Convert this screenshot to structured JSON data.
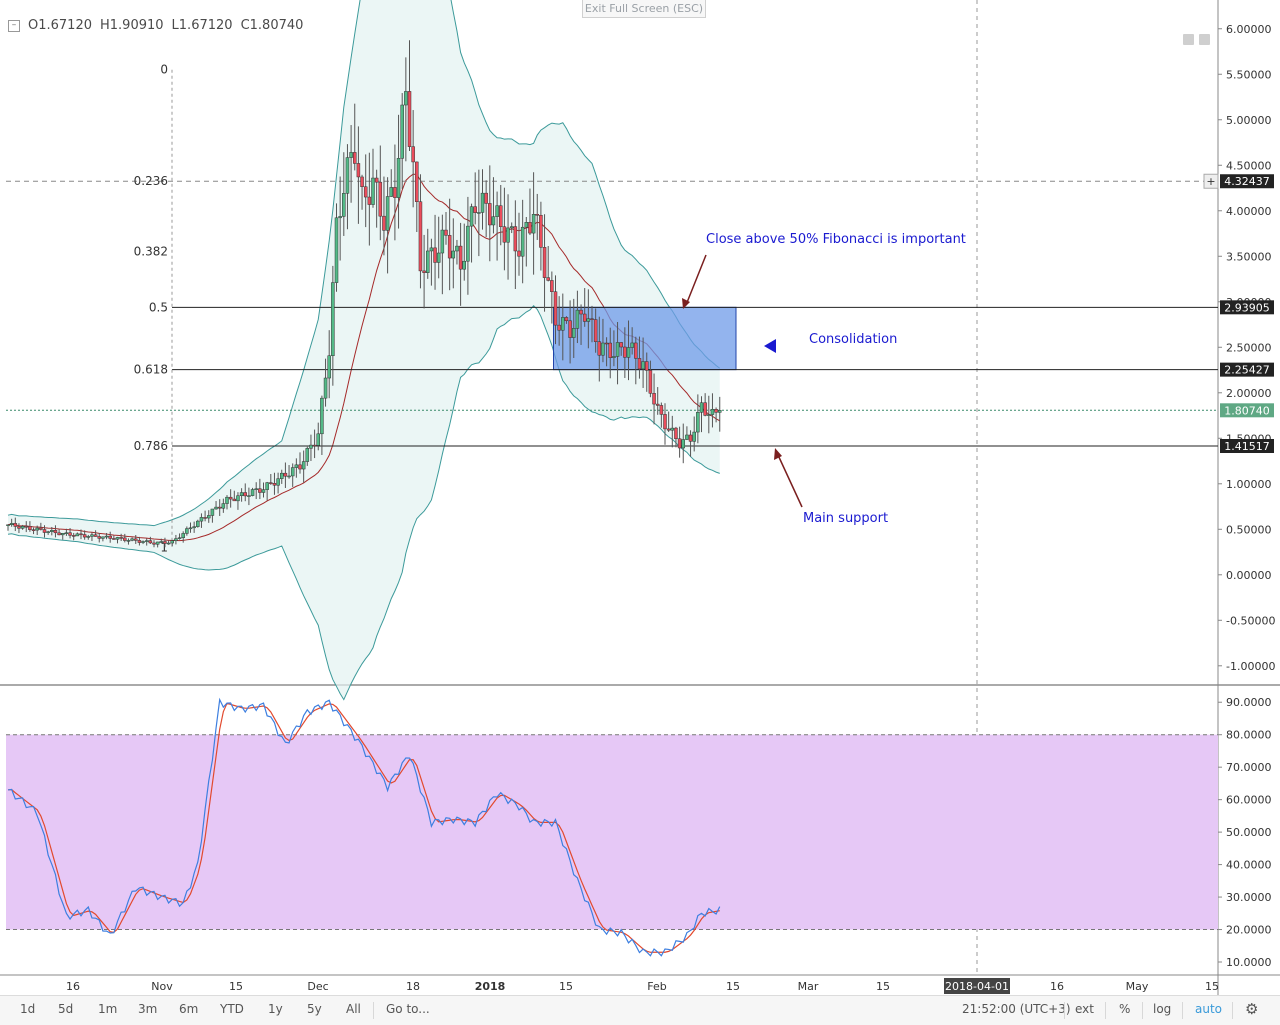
{
  "header": {
    "ohlc": {
      "open": "O1.67120",
      "high": "H1.90910",
      "low": "L1.67120",
      "close": "C1.80740"
    },
    "exit_fullscreen_label": "Exit Full Screen (ESC)"
  },
  "chart_data": {
    "type": "candlestick",
    "price_axis": {
      "range": [
        -1.2,
        6.25
      ],
      "ticks": [
        "6.00000",
        "5.50000",
        "5.00000",
        "4.50000",
        "4.00000",
        "3.50000",
        "3.00000",
        "2.50000",
        "2.00000",
        "1.50000",
        "1.00000",
        "0.50000",
        "0.00000",
        "-0.50000",
        "-1.00000"
      ]
    },
    "price_badges": [
      {
        "label": "4.32437",
        "value": 4.32437,
        "style": "dark",
        "prefix": "+"
      },
      {
        "label": "2.93905",
        "value": 2.93905,
        "style": "dark"
      },
      {
        "label": "2.25427",
        "value": 2.25427,
        "style": "dark"
      },
      {
        "label": "1.80740",
        "value": 1.8074,
        "style": "green"
      },
      {
        "label": "1.41517",
        "value": 1.41517,
        "style": "dark"
      }
    ],
    "fibonacci": [
      {
        "label": "0",
        "value": 5.55
      },
      {
        "label": "0.236",
        "value": 4.32437
      },
      {
        "label": "0.382",
        "value": 3.55
      },
      {
        "label": "0.5",
        "value": 2.93905
      },
      {
        "label": "0.618",
        "value": 2.25427
      },
      {
        "label": "0.786",
        "value": 1.41517
      },
      {
        "label": "1",
        "value": 0.3
      }
    ],
    "time_axis": [
      "16",
      "Nov",
      "15",
      "Dec",
      "18",
      "2018",
      "15",
      "Feb",
      "15",
      "Mar",
      "15",
      "2018-04-01",
      "16",
      "May",
      "15"
    ],
    "time_axis_bold": [
      "2018"
    ],
    "time_axis_highlight": "2018-04-01",
    "candles": {
      "anchors_bar_price": [
        [
          0,
          0.55
        ],
        [
          15,
          0.45
        ],
        [
          30,
          0.4
        ],
        [
          40,
          0.35
        ],
        [
          45,
          0.36
        ],
        [
          50,
          0.52
        ],
        [
          60,
          0.82
        ],
        [
          70,
          0.95
        ],
        [
          80,
          1.2
        ],
        [
          85,
          1.55
        ],
        [
          88,
          2.5
        ],
        [
          90,
          3.8
        ],
        [
          92,
          4.3
        ],
        [
          95,
          4.7
        ],
        [
          97,
          4.1
        ],
        [
          100,
          4.3
        ],
        [
          103,
          3.9
        ],
        [
          106,
          4.3
        ],
        [
          109,
          5.3
        ],
        [
          111,
          4.5
        ],
        [
          113,
          3.4
        ],
        [
          116,
          3.5
        ],
        [
          120,
          3.7
        ],
        [
          124,
          3.4
        ],
        [
          128,
          4.1
        ],
        [
          132,
          4.0
        ],
        [
          136,
          3.8
        ],
        [
          140,
          3.6
        ],
        [
          144,
          4.0
        ],
        [
          147,
          3.4
        ],
        [
          150,
          2.8
        ],
        [
          154,
          2.7
        ],
        [
          158,
          2.9
        ],
        [
          162,
          2.5
        ],
        [
          166,
          2.45
        ],
        [
          170,
          2.5
        ],
        [
          174,
          2.3
        ],
        [
          178,
          1.8
        ],
        [
          181,
          1.6
        ],
        [
          184,
          1.45
        ],
        [
          187,
          1.5
        ],
        [
          190,
          1.85
        ],
        [
          193,
          1.75
        ],
        [
          195,
          1.81
        ]
      ],
      "count": 196,
      "last_close": 1.8074
    },
    "moving_average_color": "#a52a2a",
    "bollinger_color": "#3c9a9a",
    "bollinger_width": [
      [
        0,
        0.1
      ],
      [
        40,
        0.14
      ],
      [
        60,
        0.45
      ],
      [
        75,
        0.55
      ],
      [
        85,
        1.6
      ],
      [
        92,
        3.1
      ],
      [
        100,
        3.8
      ],
      [
        108,
        4.0
      ],
      [
        116,
        3.2
      ],
      [
        124,
        1.7
      ],
      [
        134,
        1.0
      ],
      [
        144,
        0.85
      ],
      [
        152,
        1.35
      ],
      [
        160,
        1.3
      ],
      [
        168,
        0.9
      ],
      [
        176,
        0.75
      ],
      [
        186,
        0.62
      ],
      [
        195,
        0.55
      ]
    ],
    "consolidation_zone": {
      "top": 2.93905,
      "bottom": 2.25427,
      "bar_start": 150,
      "bar_end": 200
    },
    "horizontal_lines": [
      2.93905,
      2.25427,
      1.41517
    ],
    "annotations": [
      {
        "text": "Close above 50% Fibonacci is important",
        "color": "#1a1ad0"
      },
      {
        "text": "Consolidation",
        "color": "#1a1ad0"
      },
      {
        "text": "Main support",
        "color": "#1a1ad0"
      }
    ],
    "stochastic": {
      "range": [
        6,
        95
      ],
      "ticks": [
        "90.0000",
        "80.0000",
        "70.0000",
        "60.0000",
        "50.0000",
        "40.0000",
        "30.0000",
        "20.0000",
        "10.0000"
      ],
      "bands": [
        20,
        80
      ],
      "band_fill": "#e6c8f6",
      "k_color": "#3d7fe0",
      "d_color": "#e24a2e",
      "k_anchors": [
        [
          0,
          63
        ],
        [
          8,
          56
        ],
        [
          16,
          24
        ],
        [
          22,
          26
        ],
        [
          28,
          18
        ],
        [
          35,
          33
        ],
        [
          42,
          30
        ],
        [
          48,
          28
        ],
        [
          52,
          40
        ],
        [
          58,
          90
        ],
        [
          64,
          88
        ],
        [
          70,
          89
        ],
        [
          76,
          77
        ],
        [
          82,
          87
        ],
        [
          88,
          90
        ],
        [
          96,
          78
        ],
        [
          104,
          64
        ],
        [
          110,
          74
        ],
        [
          116,
          53
        ],
        [
          122,
          54
        ],
        [
          128,
          53
        ],
        [
          134,
          62
        ],
        [
          140,
          58
        ],
        [
          144,
          53
        ],
        [
          150,
          53
        ],
        [
          156,
          35
        ],
        [
          162,
          20
        ],
        [
          168,
          19
        ],
        [
          174,
          13
        ],
        [
          180,
          13
        ],
        [
          186,
          18
        ],
        [
          190,
          25
        ],
        [
          195,
          26
        ]
      ]
    }
  },
  "toolbar": {
    "ranges": [
      "1d",
      "5d",
      "1m",
      "3m",
      "6m",
      "YTD",
      "1y",
      "5y",
      "All"
    ],
    "goto": "Go to...",
    "time": "21:52:00 (UTC+3)",
    "options": [
      "ext",
      "%",
      "log",
      "auto"
    ],
    "active_option": "auto",
    "settings_icon": "gear-icon"
  }
}
